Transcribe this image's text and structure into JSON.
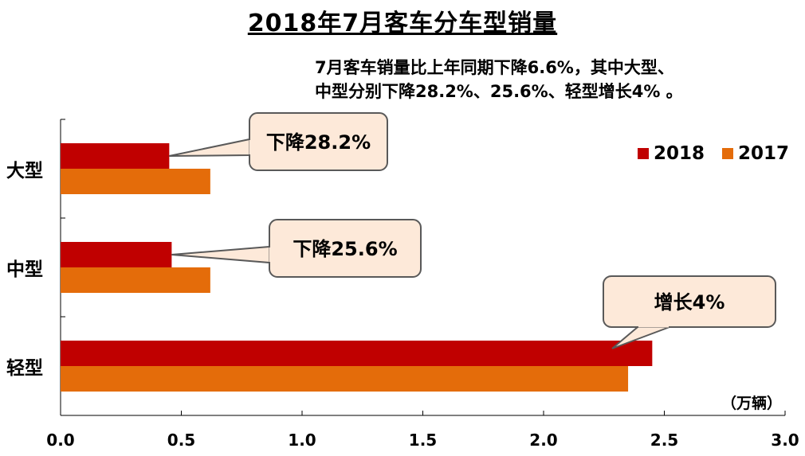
{
  "chart_data": {
    "type": "bar",
    "orientation": "horizontal",
    "title": "2018年7月客车分车型销量",
    "subtitle_lines": [
      "7月客车销量比上年同期下降6.6%，其中大型、",
      "中型分别下降28.2%、25.6%、轻型增长4% 。"
    ],
    "categories": [
      "大型",
      "中型",
      "轻型"
    ],
    "series": [
      {
        "name": "2018",
        "color": "#c00000",
        "values": [
          0.45,
          0.46,
          2.45
        ]
      },
      {
        "name": "2017",
        "color": "#e46c0a",
        "values": [
          0.62,
          0.62,
          2.35
        ]
      }
    ],
    "xlim": [
      0,
      3.0
    ],
    "x_ticks": [
      "0.0",
      "0.5",
      "1.0",
      "1.5",
      "2.0",
      "2.5",
      "3.0"
    ],
    "unit_label": "（万辆）",
    "legend_position": "top-right",
    "grid": false,
    "callouts": [
      {
        "text": "下降28.2%",
        "category": "大型"
      },
      {
        "text": "下降25.6%",
        "category": "中型"
      },
      {
        "text": "增长4%",
        "category": "轻型"
      }
    ]
  }
}
